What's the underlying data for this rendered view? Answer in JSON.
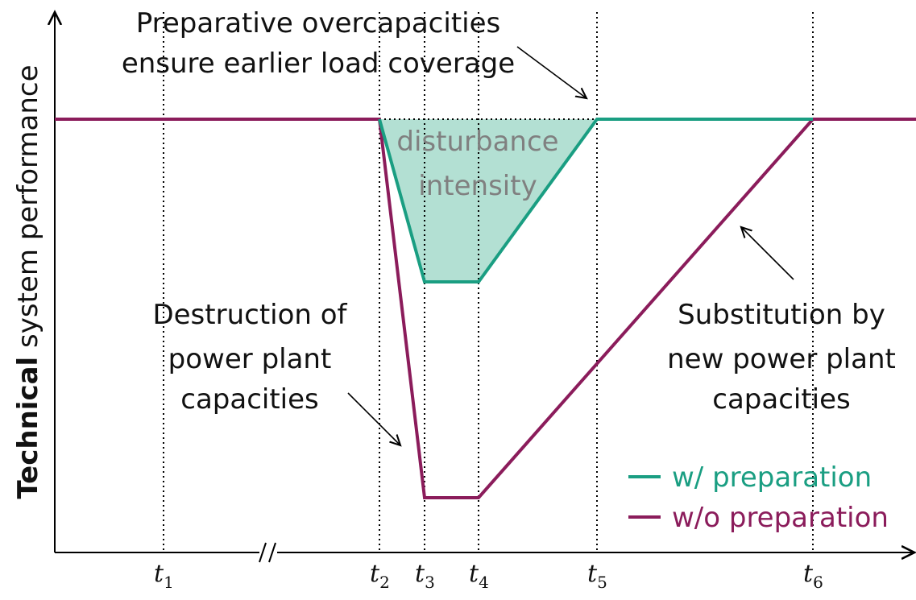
{
  "y_axis_label": {
    "bold": "Technical",
    "rest": "system performance"
  },
  "annotations": {
    "top": [
      "Preparative overcapacities",
      "ensure earlier load coverage"
    ],
    "fill": [
      "disturbance",
      "intensity"
    ],
    "left": [
      "Destruction of",
      "power plant",
      "capacities"
    ],
    "right": [
      "Substitution by",
      "new power plant",
      "capacities"
    ]
  },
  "ticks": [
    {
      "base": "t",
      "sub": "1"
    },
    {
      "base": "t",
      "sub": "2"
    },
    {
      "base": "t",
      "sub": "3"
    },
    {
      "base": "t",
      "sub": "4"
    },
    {
      "base": "t",
      "sub": "5"
    },
    {
      "base": "t",
      "sub": "6"
    }
  ],
  "legend": [
    "w/ preparation",
    "w/o preparation"
  ]
}
